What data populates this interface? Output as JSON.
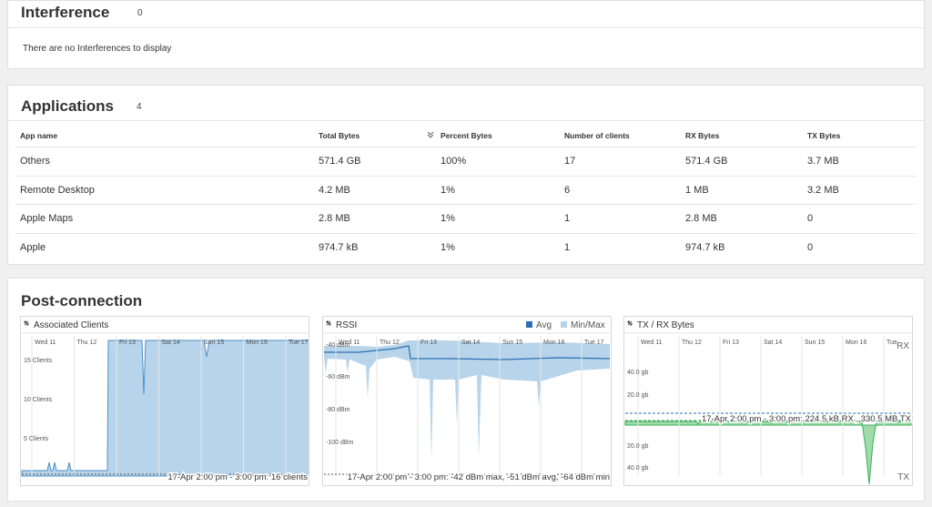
{
  "interference": {
    "title": "Interference",
    "count": "0",
    "message": "There are no Interferences to display"
  },
  "applications": {
    "title": "Applications",
    "count": "4",
    "columns": [
      "App name",
      "Total Bytes",
      "Percent Bytes",
      "Number of clients",
      "RX Bytes",
      "TX Bytes"
    ],
    "rows": [
      [
        "Others",
        "571.4 GB",
        "100%",
        "17",
        "571.4 GB",
        "3.7 MB"
      ],
      [
        "Remote Desktop",
        "4.2 MB",
        "1%",
        "6",
        "1 MB",
        "3.2 MB"
      ],
      [
        "Apple Maps",
        "2.8 MB",
        "1%",
        "1",
        "2.8 MB",
        "0"
      ],
      [
        "Apple",
        "974.7 kB",
        "1%",
        "1",
        "974.7 kB",
        "0"
      ]
    ]
  },
  "post_connection": {
    "title": "Post-connection",
    "charts": [
      {
        "title": "Associated Clients",
        "x_labels": [
          "Wed 11",
          "Thu 12",
          "Fri 13",
          "Sat 14",
          "Sun 15",
          "Mon 16",
          "Tue 17"
        ],
        "y_labels": [
          "15 Clients",
          "10 Clients",
          "5 Clients"
        ],
        "footer": "17-Apr 2:00 pm - 3:00 pm: 16 clients"
      },
      {
        "title": "RSSI",
        "legend": [
          "Avg",
          "Min/Max"
        ],
        "x_labels": [
          "Wed 11",
          "Thu 12",
          "Fri 13",
          "Sat 14",
          "Sun 15",
          "Mon 16",
          "Tue 17"
        ],
        "y_labels": [
          "-40 dBm",
          "-60 dBm",
          "-80 dBm",
          "-100 dBm"
        ],
        "footer": "17-Apr 2:00 pm - 3:00 pm: -42 dBm max, -51 dBm avg, -64 dBm min"
      },
      {
        "title": "TX / RX Bytes",
        "rx_label": "RX",
        "tx_label": "TX",
        "x_labels": [
          "Wed 11",
          "Thu 12",
          "Fri 13",
          "Sat 14",
          "Sun 15",
          "Mon 16",
          "Tue"
        ],
        "y_labels": [
          "40.0 gb",
          "20.0 gb",
          "20.0 gb",
          "40.0 gb"
        ],
        "footer": "17-Apr 2:00 pm - 3:00 pm: 224.5 kB RX , 330.5 MB TX"
      }
    ]
  }
}
